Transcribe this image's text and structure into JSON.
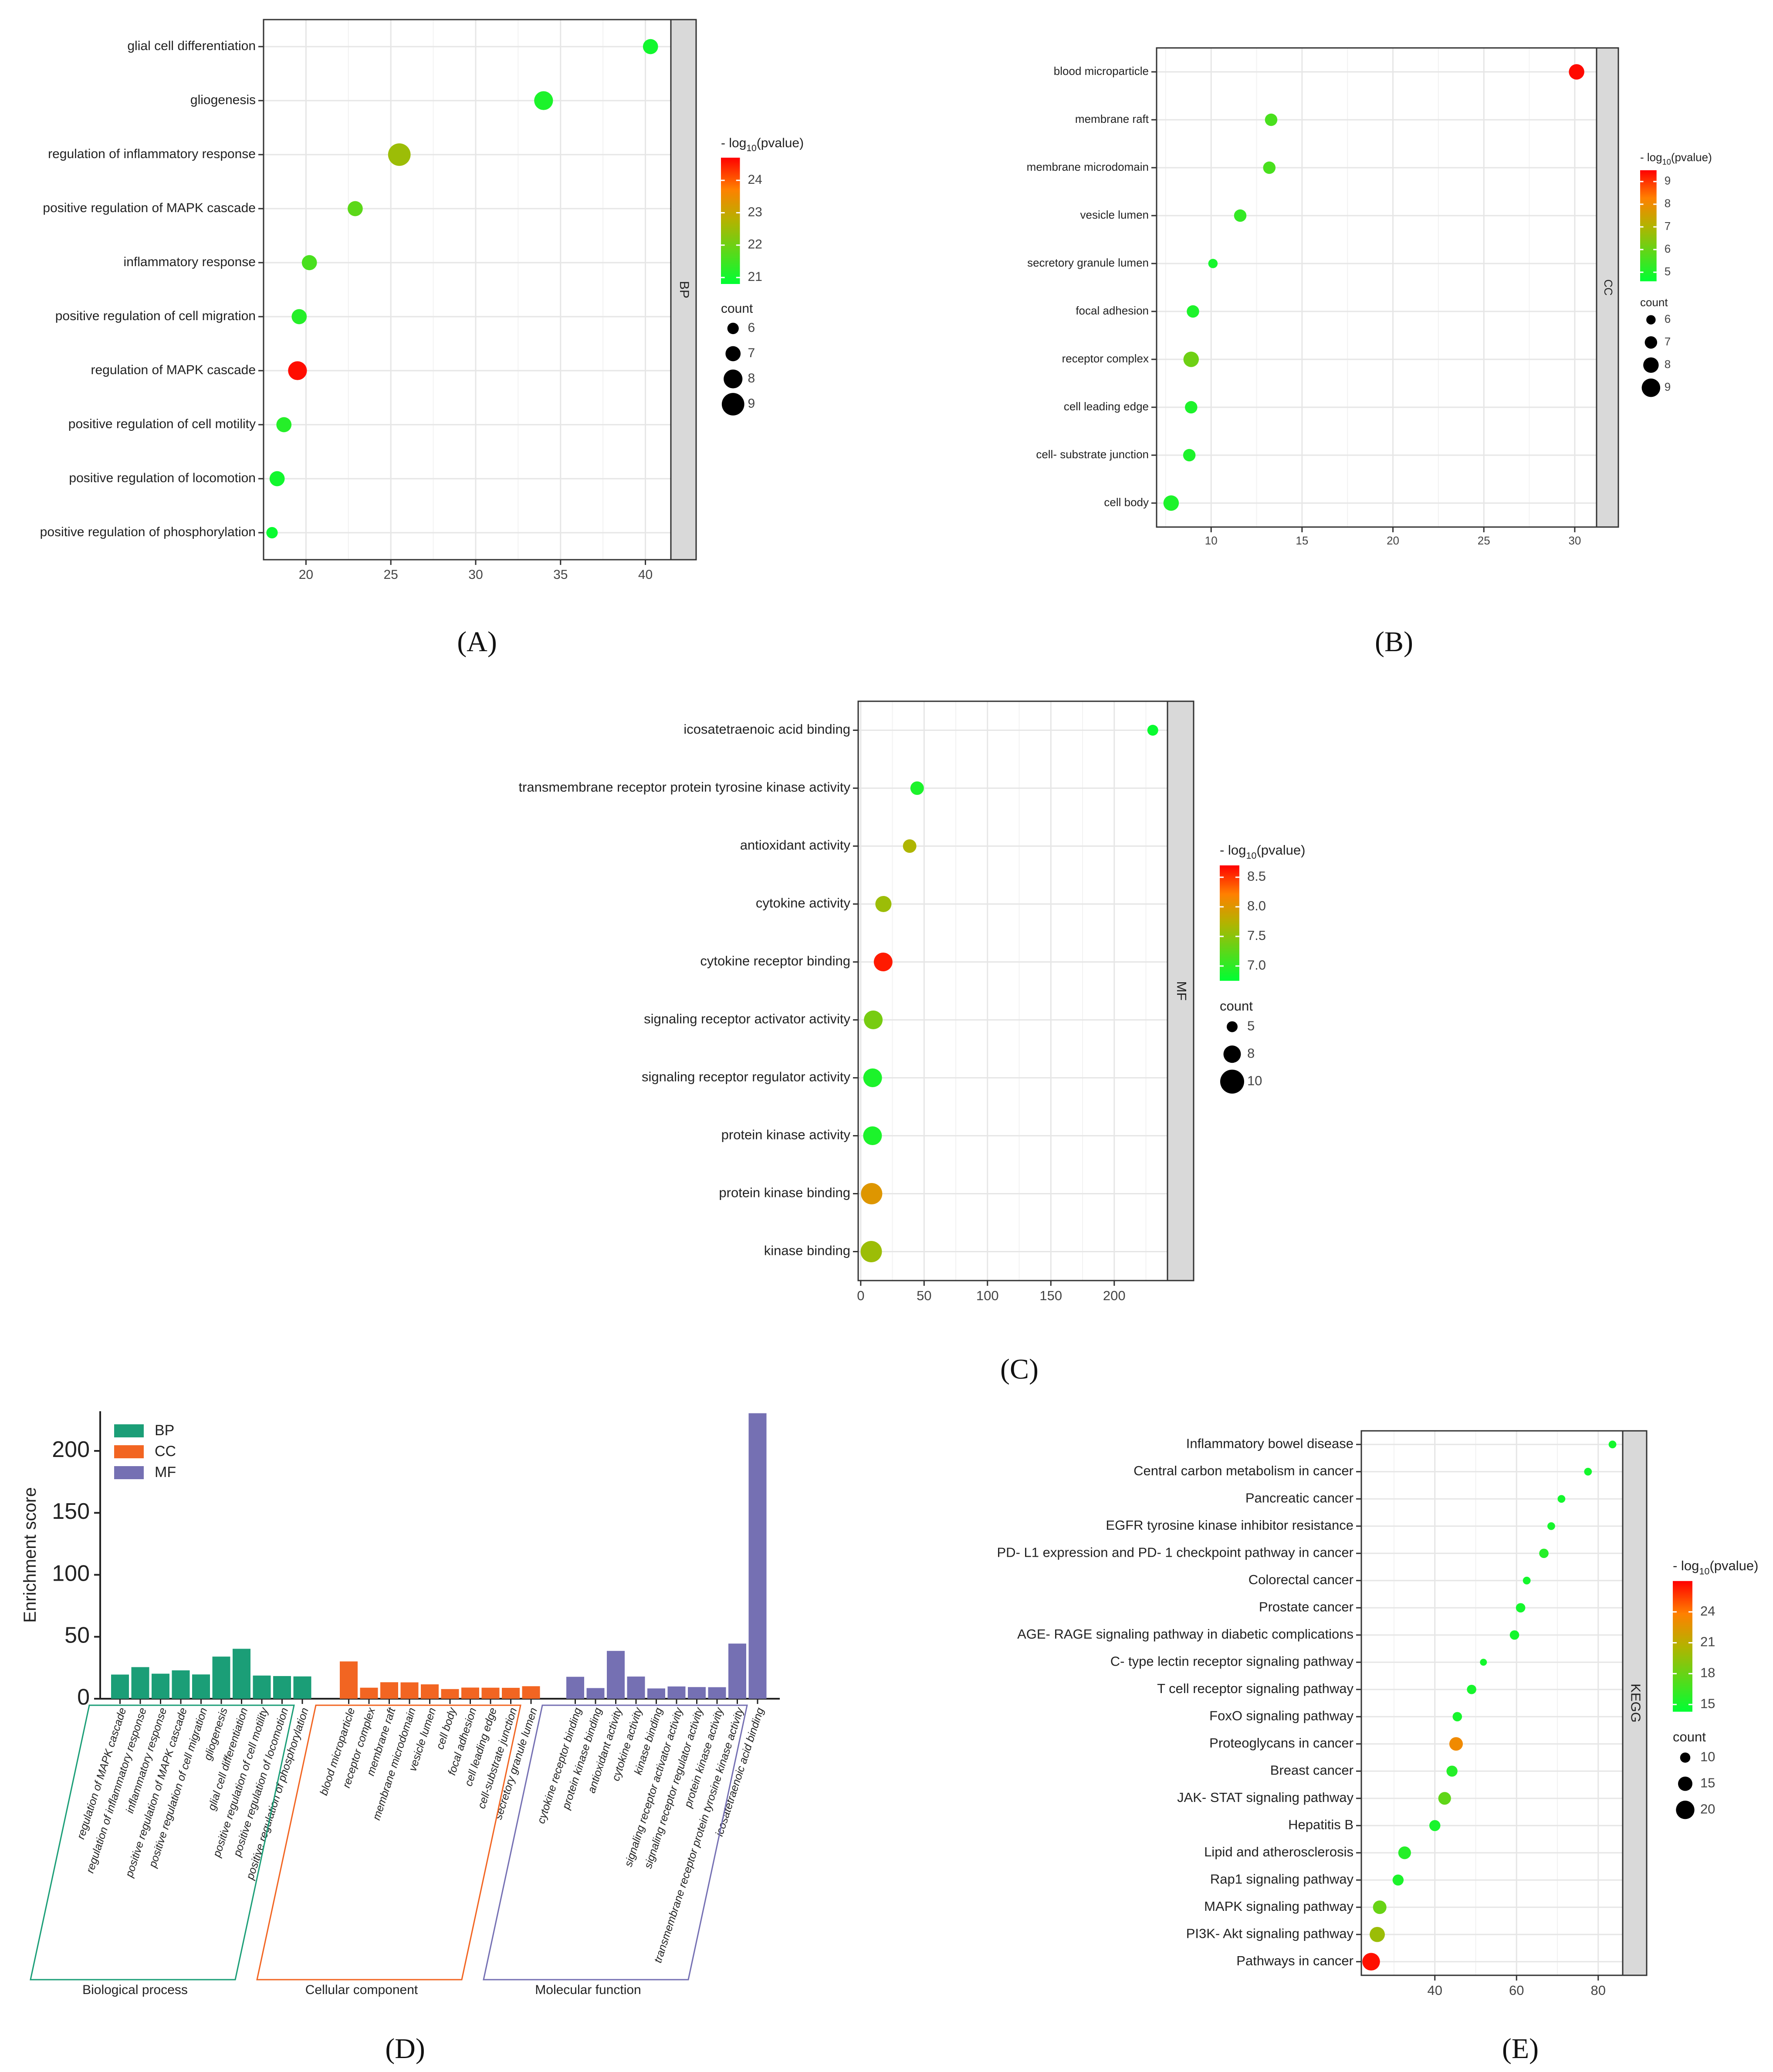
{
  "legend_title": "- log10(pvalue)",
  "legend_title_prefix": "- log",
  "legend_title_sub": "10",
  "legend_title_suffix": "(pvalue)",
  "count_title": "count",
  "panel_labels": [
    "(A)",
    "(B)",
    "(C)",
    "(D)",
    "(E)"
  ],
  "chart_data": [
    {
      "id": "A",
      "type": "scatter",
      "strip": "BP",
      "xlim": [
        17.5,
        41.5
      ],
      "xticks": [
        20,
        25,
        30,
        35,
        40
      ],
      "color_range": [
        20.8,
        24.7
      ],
      "color_ticks": [
        21,
        22,
        23,
        24
      ],
      "size_ticks": [
        6,
        7,
        8,
        9
      ],
      "size_range": [
        5.5,
        9.5
      ],
      "categories": [
        "glial cell differentiation",
        "gliogenesis",
        "regulation of inflammatory response",
        "positive regulation of MAPK cascade",
        "inflammatory response",
        "positive regulation of cell migration",
        "regulation of MAPK cascade",
        "positive regulation of cell motility",
        "positive regulation of locomotion",
        "positive regulation of phosphorylation"
      ],
      "x": [
        40.3,
        34.0,
        25.5,
        22.9,
        20.2,
        19.6,
        19.5,
        18.7,
        18.3,
        18.0
      ],
      "pvalue": [
        21.0,
        21.1,
        22.5,
        21.8,
        21.6,
        21.2,
        24.6,
        21.2,
        21.0,
        20.9
      ],
      "count": [
        7,
        8,
        9,
        7,
        7,
        7,
        8,
        7,
        7,
        6
      ]
    },
    {
      "id": "B",
      "type": "scatter",
      "strip": "CC",
      "xlim": [
        7.0,
        31.2
      ],
      "xticks": [
        10,
        15,
        20,
        25,
        30
      ],
      "color_range": [
        4.6,
        9.5
      ],
      "color_ticks": [
        5,
        6,
        7,
        8,
        9
      ],
      "size_ticks": [
        6,
        7,
        8,
        9
      ],
      "size_range": [
        5.5,
        9.5
      ],
      "categories": [
        "blood microparticle",
        "membrane raft",
        "membrane microdomain",
        "vesicle lumen",
        "secretory granule lumen",
        "focal adhesion",
        "receptor complex",
        "cell leading edge",
        "cell- substrate junction",
        "cell body"
      ],
      "x": [
        30.1,
        13.3,
        13.2,
        11.6,
        10.1,
        9.0,
        8.9,
        8.9,
        8.8,
        7.8
      ],
      "pvalue": [
        9.4,
        5.6,
        5.6,
        5.3,
        4.9,
        5.0,
        6.1,
        5.0,
        5.0,
        5.0
      ],
      "count": [
        8,
        7,
        7,
        7,
        6,
        7,
        8,
        7,
        7,
        8
      ]
    },
    {
      "id": "C",
      "type": "scatter",
      "strip": "MF",
      "xlim": [
        -2,
        242
      ],
      "xticks": [
        0,
        50,
        100,
        150,
        200
      ],
      "color_range": [
        6.75,
        8.7
      ],
      "color_ticks": [
        7.0,
        7.5,
        8.0,
        8.5
      ],
      "size_ticks": [
        5.0,
        7.5,
        10.0
      ],
      "size_range": [
        4.5,
        10.5
      ],
      "categories": [
        "icosatetraenoic acid binding",
        "transmembrane receptor protein tyrosine kinase activity",
        "antioxidant activity",
        "cytokine activity",
        "cytokine receptor binding",
        "signaling receptor activator activity",
        "signaling receptor regulator activity",
        "protein kinase activity",
        "protein kinase binding",
        "kinase binding"
      ],
      "x": [
        230.4,
        44.5,
        38.6,
        17.9,
        17.7,
        9.9,
        9.4,
        9.3,
        8.6,
        8.3
      ],
      "pvalue": [
        6.8,
        6.9,
        7.7,
        7.6,
        8.6,
        7.4,
        6.9,
        6.9,
        8.0,
        7.6
      ],
      "count": [
        5,
        6,
        6,
        7,
        8,
        8,
        8,
        8,
        9,
        9
      ]
    },
    {
      "id": "D",
      "type": "bar",
      "ylabel": "Enrichment score",
      "ylim": [
        0,
        232
      ],
      "yticks": [
        0,
        50,
        100,
        150,
        200
      ],
      "legend": [
        "BP",
        "CC",
        "MF"
      ],
      "series_colors": {
        "BP": "#1b9e77",
        "CC": "#f26522",
        "MF": "#7570b3"
      },
      "groups": [
        {
          "name": "Biological process",
          "series": "BP",
          "categories": [
            "regulation of MAPK cascade",
            "regulation of inflammatory response",
            "inflammatory response",
            "positive regulation of MAPK cascade",
            "positive regulation of cell migration",
            "gliogenesis",
            "glial cell differentiation",
            "positive regulation of cell motility",
            "positive regulation of locomotion",
            "positive regulation of phosphorylation"
          ],
          "values": [
            19.5,
            25.5,
            20.2,
            22.9,
            19.6,
            34.0,
            40.3,
            18.7,
            18.3,
            18.0
          ]
        },
        {
          "name": "Cellular component",
          "series": "CC",
          "categories": [
            "blood microparticle",
            "receptor complex",
            "membrane raft",
            "membrane microdomain",
            "vesicle lumen",
            "cell body",
            "focal adhesion",
            "cell leading edge",
            "cell-substrate junction",
            "secretory granule lumen"
          ],
          "values": [
            30.1,
            8.9,
            13.3,
            13.2,
            11.6,
            7.8,
            9.0,
            8.9,
            8.8,
            10.1
          ]
        },
        {
          "name": "Molecular function",
          "series": "MF",
          "categories": [
            "cytokine receptor binding",
            "protein kinase binding",
            "antioxidant activity",
            "cytokine activity",
            "kinase binding",
            "signaling receptor activator activity",
            "signaling receptor regulator activity",
            "protein kinase activity",
            "transmembrane receptor protein tyrosine kinase activity",
            "icosatetraenoic acid binding"
          ],
          "values": [
            17.7,
            8.6,
            38.6,
            17.9,
            8.3,
            9.9,
            9.4,
            9.3,
            44.5,
            230.4
          ]
        }
      ]
    },
    {
      "id": "E",
      "type": "scatter",
      "strip": "KEGG",
      "xlim": [
        22,
        86
      ],
      "xticks": [
        40,
        60,
        80
      ],
      "color_range": [
        14.3,
        27.0
      ],
      "color_ticks": [
        15,
        18,
        21,
        24
      ],
      "size_ticks": [
        10,
        15,
        20
      ],
      "size_range": [
        5,
        24
      ],
      "categories": [
        "Inflammatory bowel disease",
        "Central carbon metabolism in cancer",
        "Pancreatic cancer",
        "EGFR tyrosine kinase inhibitor resistance",
        "PD- L1 expression and PD- 1 checkpoint pathway in cancer",
        "Colorectal cancer",
        "Prostate cancer",
        "AGE- RAGE signaling pathway in diabetic complications",
        "C- type lectin receptor signaling pathway",
        "T cell receptor signaling pathway",
        "FoxO signaling pathway",
        "Proteoglycans in cancer",
        "Breast cancer",
        "JAK- STAT signaling pathway",
        "Hepatitis B",
        "Lipid and atherosclerosis",
        "Rap1 signaling pathway",
        "MAPK signaling pathway",
        "PI3K- Akt signaling pathway",
        "Pathways in cancer"
      ],
      "x": [
        83.5,
        77.5,
        71.0,
        68.5,
        66.7,
        62.5,
        61.0,
        59.5,
        51.9,
        49.0,
        45.5,
        45.2,
        44.2,
        42.4,
        40.0,
        32.6,
        31.0,
        26.5,
        25.9,
        24.4
      ],
      "pvalue": [
        15.0,
        15.0,
        15.0,
        15.1,
        15.6,
        15.0,
        15.0,
        15.0,
        15.0,
        15.1,
        15.1,
        23.2,
        15.6,
        17.7,
        15.1,
        15.6,
        15.3,
        18.0,
        19.8,
        26.6
      ],
      "count": [
        7,
        7,
        7,
        7,
        9,
        7,
        9,
        9,
        6,
        9,
        9,
        14,
        11,
        13,
        11,
        13,
        11,
        14,
        16,
        19
      ]
    }
  ]
}
